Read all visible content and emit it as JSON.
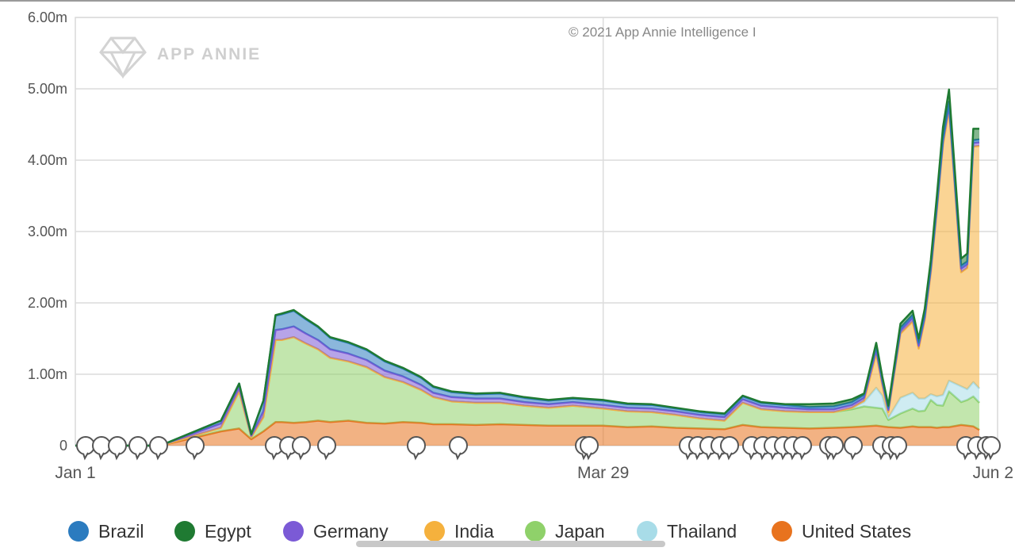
{
  "watermark": {
    "logo_text": "APP ANNIE",
    "copyright": "© 2021 App Annie Intelligence I"
  },
  "chart_data": {
    "type": "area",
    "stacked": true,
    "y_tick_labels": [
      "0",
      "1.00m",
      "2.00m",
      "3.00m",
      "4.00m",
      "5.00m",
      "6.00m"
    ],
    "ylim": [
      0,
      6000000
    ],
    "x_tick_labels": [
      "Jan 1",
      "Mar 29",
      "Jun 2"
    ],
    "x_range": [
      "Jan 1",
      "Jun 2"
    ],
    "grid": true,
    "legend_position": "bottom",
    "dates": [
      "Jan 1",
      "Jan 15",
      "Jan 25",
      "Jan 28",
      "Jan 30",
      "Feb 1",
      "Feb 3",
      "Feb 4",
      "Feb 6",
      "Feb 8",
      "Feb 10",
      "Feb 12",
      "Feb 15",
      "Feb 18",
      "Feb 21",
      "Feb 24",
      "Feb 27",
      "Mar 1",
      "Mar 4",
      "Mar 8",
      "Mar 12",
      "Mar 16",
      "Mar 20",
      "Mar 24",
      "Mar 29",
      "Apr 2",
      "Apr 6",
      "Apr 10",
      "Apr 14",
      "Apr 18",
      "Apr 21",
      "Apr 24",
      "Apr 28",
      "May 2",
      "May 6",
      "May 9",
      "May 11",
      "May 13",
      "May 14",
      "May 15",
      "May 17",
      "May 19",
      "May 20",
      "May 21",
      "May 22",
      "May 23",
      "May 24",
      "May 25",
      "May 27",
      "May 28",
      "May 29",
      "May 30"
    ],
    "series": [
      {
        "name": "United States",
        "color": "#e8731e",
        "values": [
          0,
          0,
          200000,
          240000,
          90000,
          200000,
          330000,
          330000,
          320000,
          330000,
          350000,
          330000,
          350000,
          320000,
          310000,
          330000,
          320000,
          300000,
          300000,
          290000,
          300000,
          290000,
          280000,
          280000,
          280000,
          260000,
          270000,
          250000,
          240000,
          230000,
          290000,
          260000,
          250000,
          240000,
          250000,
          260000,
          270000,
          280000,
          270000,
          260000,
          250000,
          270000,
          260000,
          260000,
          260000,
          250000,
          260000,
          260000,
          290000,
          280000,
          270000,
          220000
        ]
      },
      {
        "name": "Japan",
        "color": "#8fd16a",
        "values": [
          0,
          0,
          50000,
          520000,
          30000,
          200000,
          1150000,
          1150000,
          1200000,
          1100000,
          1000000,
          900000,
          830000,
          780000,
          650000,
          560000,
          460000,
          380000,
          320000,
          310000,
          300000,
          270000,
          250000,
          280000,
          240000,
          220000,
          200000,
          180000,
          140000,
          120000,
          310000,
          250000,
          230000,
          230000,
          220000,
          250000,
          280000,
          250000,
          250000,
          100000,
          200000,
          250000,
          220000,
          230000,
          380000,
          320000,
          300000,
          500000,
          320000,
          360000,
          420000,
          380000
        ]
      },
      {
        "name": "Thailand",
        "color": "#a8dce8",
        "values": [
          0,
          0,
          0,
          0,
          0,
          0,
          0,
          0,
          0,
          0,
          0,
          0,
          0,
          0,
          0,
          0,
          0,
          0,
          0,
          0,
          0,
          0,
          0,
          0,
          0,
          0,
          0,
          0,
          0,
          0,
          0,
          0,
          0,
          0,
          0,
          20000,
          60000,
          280000,
          180000,
          30000,
          220000,
          220000,
          180000,
          170000,
          80000,
          120000,
          150000,
          150000,
          220000,
          150000,
          200000,
          200000
        ]
      },
      {
        "name": "India",
        "color": "#f5b13d",
        "values": [
          0,
          0,
          0,
          0,
          0,
          0,
          0,
          0,
          0,
          0,
          0,
          0,
          0,
          0,
          0,
          0,
          0,
          0,
          0,
          0,
          0,
          0,
          0,
          0,
          0,
          0,
          0,
          0,
          0,
          0,
          0,
          0,
          0,
          0,
          0,
          0,
          20000,
          480000,
          150000,
          80000,
          900000,
          1000000,
          700000,
          1100000,
          1700000,
          2600000,
          3500000,
          3800000,
          1600000,
          1700000,
          3300000,
          3400000
        ]
      },
      {
        "name": "Germany",
        "color": "#7b5ad6",
        "values": [
          0,
          0,
          60000,
          60000,
          20000,
          80000,
          140000,
          150000,
          150000,
          140000,
          130000,
          120000,
          110000,
          100000,
          90000,
          80000,
          70000,
          60000,
          60000,
          60000,
          60000,
          50000,
          50000,
          50000,
          50000,
          50000,
          50000,
          50000,
          50000,
          50000,
          50000,
          50000,
          50000,
          40000,
          40000,
          40000,
          40000,
          50000,
          40000,
          30000,
          40000,
          50000,
          40000,
          40000,
          50000,
          50000,
          50000,
          60000,
          50000,
          50000,
          50000,
          50000
        ]
      },
      {
        "name": "Brazil",
        "color": "#2b7bbf",
        "values": [
          0,
          0,
          40000,
          50000,
          20000,
          150000,
          200000,
          210000,
          220000,
          200000,
          180000,
          160000,
          150000,
          140000,
          130000,
          110000,
          100000,
          80000,
          70000,
          60000,
          70000,
          60000,
          50000,
          50000,
          60000,
          50000,
          50000,
          40000,
          40000,
          40000,
          40000,
          40000,
          40000,
          30000,
          40000,
          40000,
          40000,
          50000,
          40000,
          30000,
          40000,
          40000,
          40000,
          40000,
          40000,
          40000,
          40000,
          50000,
          40000,
          40000,
          40000,
          40000
        ]
      },
      {
        "name": "Egypt",
        "color": "#1f7a32",
        "values": [
          0,
          0,
          0,
          0,
          0,
          0,
          10000,
          10000,
          10000,
          10000,
          10000,
          10000,
          10000,
          10000,
          10000,
          10000,
          10000,
          10000,
          10000,
          10000,
          10000,
          10000,
          10000,
          10000,
          10000,
          10000,
          10000,
          10000,
          10000,
          10000,
          10000,
          10000,
          10000,
          40000,
          40000,
          40000,
          20000,
          50000,
          40000,
          30000,
          60000,
          60000,
          60000,
          80000,
          90000,
          120000,
          160000,
          170000,
          100000,
          110000,
          160000,
          150000
        ]
      }
    ]
  },
  "legend": [
    {
      "label": "Brazil",
      "color": "#2b7bbf"
    },
    {
      "label": "Egypt",
      "color": "#1f7a32"
    },
    {
      "label": "Germany",
      "color": "#7b5ad6"
    },
    {
      "label": "India",
      "color": "#f5b13d"
    },
    {
      "label": "Japan",
      "color": "#8fd16a"
    },
    {
      "label": "Thailand",
      "color": "#a8dce8"
    },
    {
      "label": "United States",
      "color": "#e8731e"
    }
  ],
  "annotation_markers_count": 48
}
